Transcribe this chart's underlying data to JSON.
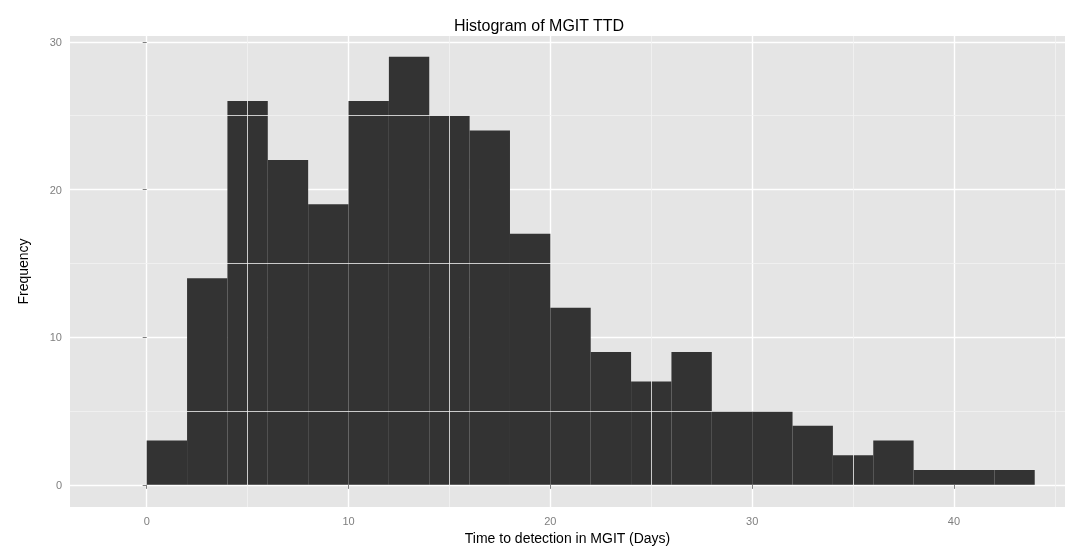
{
  "chart_data": {
    "type": "histogram",
    "title": "Histogram of MGIT TTD",
    "xlabel": "Time to detection in MGIT (Days)",
    "ylabel": "Frequency",
    "bins": [
      0,
      2,
      4,
      6,
      8,
      10,
      12,
      14,
      16,
      18,
      20,
      22,
      24,
      26,
      28,
      30,
      32,
      34,
      36,
      38,
      40,
      42,
      44
    ],
    "values": [
      3,
      14,
      26,
      22,
      19,
      26,
      29,
      25,
      24,
      17,
      12,
      9,
      7,
      9,
      5,
      5,
      4,
      2,
      3,
      1,
      1,
      1
    ],
    "color": "#333333",
    "xlim": [
      -3.8,
      45.5
    ],
    "xticks": [
      0,
      10,
      20,
      30,
      40
    ],
    "ylim": [
      -1.5,
      30.4
    ],
    "yticks": [
      0,
      10,
      20,
      30
    ],
    "grid": true
  }
}
